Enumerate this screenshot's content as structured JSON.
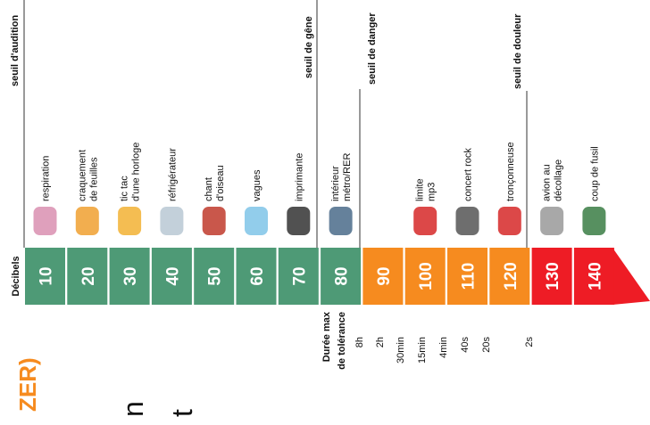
{
  "thresholds": [
    "seuil d'audition",
    "seuil de gêne",
    "seuil de danger",
    "seuil de douleur"
  ],
  "scale_label": "Décibels",
  "levels": [
    {
      "db": "10",
      "sound": [
        "respiration"
      ]
    },
    {
      "db": "20",
      "sound": [
        "craquement",
        "de feuilles"
      ]
    },
    {
      "db": "30",
      "sound": [
        "tic tac",
        "d'une horloge"
      ]
    },
    {
      "db": "40",
      "sound": [
        "réfrigérateur"
      ]
    },
    {
      "db": "50",
      "sound": [
        "chant",
        "d'oiseau"
      ]
    },
    {
      "db": "60",
      "sound": [
        "vagues"
      ]
    },
    {
      "db": "70",
      "sound": [
        "imprimante"
      ]
    },
    {
      "db": "80",
      "sound": [
        "intérieur",
        "métro/RER"
      ]
    },
    {
      "db": "90",
      "sound": []
    },
    {
      "db": "100",
      "sound": [
        "limite",
        "mp3"
      ]
    },
    {
      "db": "110",
      "sound": [
        "concert rock"
      ]
    },
    {
      "db": "120",
      "sound": [
        "tronçonneuse"
      ]
    },
    {
      "db": "130",
      "sound": [
        "avion au",
        "décollage"
      ]
    },
    {
      "db": "140",
      "sound": [
        "coup de fusil"
      ]
    }
  ],
  "duration_title": [
    "Durée max",
    "de tolérance"
  ],
  "durations": [
    "8h",
    "2h",
    "30min",
    "15min",
    "4min",
    "40s",
    "20s",
    "2s"
  ],
  "cropped": [
    "ZER)",
    "n",
    "t"
  ]
}
